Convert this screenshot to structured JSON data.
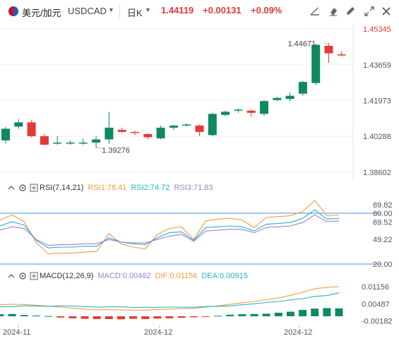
{
  "header": {
    "pair": "美元/加元",
    "symbol": "USDCAD",
    "period": "日K",
    "price": "1.44119",
    "change": "+0.00131",
    "change_pct": "+0.09%",
    "icons": [
      "draw-icon",
      "eraser-icon",
      "pen-icon",
      "expand-icon",
      "close-icon"
    ]
  },
  "price_panel": {
    "y_ticks": [
      "1.45345",
      "1.43659",
      "1.41973",
      "1.40288",
      "1.38602"
    ],
    "last_price_label": "1.45345",
    "high_marker": "1.44671",
    "low_marker": "1.39276"
  },
  "rsi_panel": {
    "title": "RSI(7,14,21)",
    "rsi1": "RSI1:78.41",
    "rsi2": "RSI2:74.72",
    "rsi3": "RSI3:71.83",
    "y_ticks": [
      "89.82",
      "80.00",
      "69.52",
      "49.22",
      "20.00"
    ]
  },
  "macd_panel": {
    "title": "MACD(12,26,9)",
    "macd": "MACD:0.00482",
    "dif": "DIF:0.01156",
    "dea": "DEA:0.00915",
    "y_ticks": [
      "0.01156",
      "0.00487",
      "-0.00182"
    ]
  },
  "x_axis": {
    "labels": [
      "2024-11",
      "2024-12",
      "2024-12"
    ]
  },
  "colors": {
    "up": "#0f8a5f",
    "down": "#e53935",
    "rsi1": "#f39c3d",
    "rsi2": "#26b3c9",
    "rsi3": "#9b7fd4",
    "ref_line": "#4a90d9"
  },
  "chart_data": [
    {
      "type": "candlestick",
      "ylim": [
        1.38602,
        1.45345
      ],
      "candles": [
        {
          "o": 1.401,
          "h": 1.4075,
          "l": 1.3995,
          "c": 1.4065
        },
        {
          "o": 1.4075,
          "h": 1.411,
          "l": 1.4065,
          "c": 1.4095
        },
        {
          "o": 1.4095,
          "h": 1.4105,
          "l": 1.4025,
          "c": 1.403
        },
        {
          "o": 1.403,
          "h": 1.404,
          "l": 1.3985,
          "c": 1.399
        },
        {
          "o": 1.3995,
          "h": 1.403,
          "l": 1.399,
          "c": 1.4
        },
        {
          "o": 1.3998,
          "h": 1.401,
          "l": 1.399,
          "c": 1.4
        },
        {
          "o": 1.4,
          "h": 1.402,
          "l": 1.399,
          "c": 1.4
        },
        {
          "o": 1.4,
          "h": 1.403,
          "l": 1.3975,
          "c": 1.4015
        },
        {
          "o": 1.4015,
          "h": 1.4145,
          "l": 1.3995,
          "c": 1.407
        },
        {
          "o": 1.406,
          "h": 1.407,
          "l": 1.4045,
          "c": 1.405
        },
        {
          "o": 1.405,
          "h": 1.4055,
          "l": 1.4035,
          "c": 1.4045
        },
        {
          "o": 1.404,
          "h": 1.4045,
          "l": 1.4015,
          "c": 1.4025
        },
        {
          "o": 1.402,
          "h": 1.408,
          "l": 1.4015,
          "c": 1.407
        },
        {
          "o": 1.407,
          "h": 1.4085,
          "l": 1.406,
          "c": 1.408
        },
        {
          "o": 1.408,
          "h": 1.409,
          "l": 1.4075,
          "c": 1.4085
        },
        {
          "o": 1.408,
          "h": 1.4085,
          "l": 1.403,
          "c": 1.405
        },
        {
          "o": 1.4035,
          "h": 1.414,
          "l": 1.403,
          "c": 1.4135
        },
        {
          "o": 1.413,
          "h": 1.415,
          "l": 1.4125,
          "c": 1.4145
        },
        {
          "o": 1.415,
          "h": 1.416,
          "l": 1.414,
          "c": 1.4155
        },
        {
          "o": 1.415,
          "h": 1.4155,
          "l": 1.412,
          "c": 1.414
        },
        {
          "o": 1.4135,
          "h": 1.42,
          "l": 1.4125,
          "c": 1.4195
        },
        {
          "o": 1.42,
          "h": 1.4215,
          "l": 1.4195,
          "c": 1.421
        },
        {
          "o": 1.4205,
          "h": 1.4235,
          "l": 1.4195,
          "c": 1.422
        },
        {
          "o": 1.423,
          "h": 1.429,
          "l": 1.422,
          "c": 1.4285
        },
        {
          "o": 1.428,
          "h": 1.4465,
          "l": 1.427,
          "c": 1.446
        },
        {
          "o": 1.4455,
          "h": 1.4467,
          "l": 1.4375,
          "c": 1.442
        },
        {
          "o": 1.4415,
          "h": 1.443,
          "l": 1.4405,
          "c": 1.4412
        }
      ]
    },
    {
      "type": "line",
      "name": "RSI",
      "ylim": [
        20,
        100
      ],
      "series": [
        {
          "name": "RSI1",
          "values": [
            72,
            78,
            70,
            45,
            32,
            33,
            33,
            34,
            35,
            56,
            44,
            40,
            38,
            55,
            62,
            64,
            49,
            71,
            73,
            74,
            72,
            63,
            75,
            76,
            77,
            82,
            95,
            77,
            78
          ]
        },
        {
          "name": "RSI2",
          "values": [
            65,
            70,
            66,
            48,
            39,
            40,
            40,
            41,
            41,
            51,
            46,
            44,
            43,
            51,
            57,
            58,
            48,
            63,
            64,
            65,
            64,
            59,
            67,
            68,
            69,
            74,
            84,
            73,
            74
          ]
        },
        {
          "name": "RSI3",
          "values": [
            60,
            64,
            62,
            49,
            42,
            43,
            43,
            44,
            44,
            49,
            46,
            45,
            45,
            49,
            53,
            55,
            47,
            59,
            60,
            61,
            61,
            57,
            63,
            64,
            65,
            69,
            78,
            70,
            71
          ]
        }
      ]
    },
    {
      "type": "bar",
      "name": "MACD",
      "ylim": [
        -0.0025,
        0.013
      ],
      "values": [
        0.0008,
        0.0009,
        0.0005,
        0.0003,
        0.0001,
        -0.0005,
        -0.0008,
        -0.001,
        -0.0011,
        -0.0011,
        -0.0012,
        -0.001,
        -0.0011,
        -0.0009,
        -0.0008,
        -0.0006,
        -0.0004,
        -0.0002,
        0.0002,
        0.0006,
        0.0008,
        0.0009,
        0.001,
        0.0014,
        0.0018,
        0.0025,
        0.003,
        0.0032,
        0.0031
      ],
      "series": [
        {
          "name": "DIF",
          "values": [
            0.0045,
            0.0047,
            0.0046,
            0.0043,
            0.004,
            0.0036,
            0.0032,
            0.0028,
            0.0025,
            0.0026,
            0.0025,
            0.0024,
            0.0024,
            0.0026,
            0.0028,
            0.003,
            0.0031,
            0.0036,
            0.0041,
            0.0047,
            0.0053,
            0.0058,
            0.0064,
            0.0072,
            0.0082,
            0.0094,
            0.0108,
            0.0113,
            0.0116
          ]
        },
        {
          "name": "DEA",
          "values": [
            0.0037,
            0.0038,
            0.0041,
            0.004,
            0.0039,
            0.0041,
            0.004,
            0.0038,
            0.0036,
            0.0037,
            0.0037,
            0.0034,
            0.0035,
            0.0035,
            0.0036,
            0.0036,
            0.0035,
            0.0038,
            0.0039,
            0.0041,
            0.0045,
            0.0049,
            0.0054,
            0.0058,
            0.0064,
            0.0069,
            0.0078,
            0.0081,
            0.0092
          ]
        }
      ]
    }
  ]
}
